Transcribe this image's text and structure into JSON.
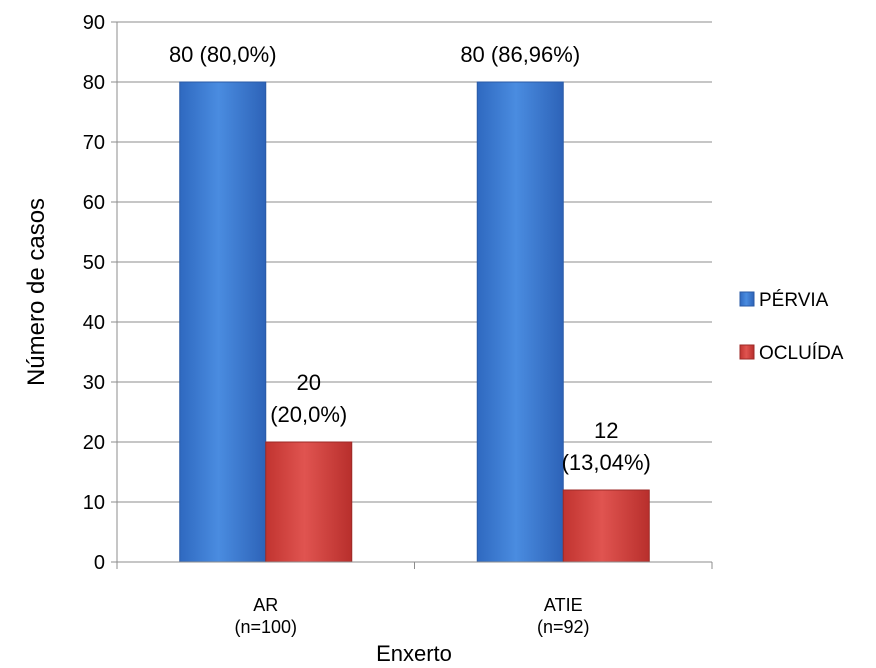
{
  "chart_data": {
    "type": "bar",
    "title": "",
    "xlabel": "Enxerto",
    "ylabel": "Número de casos",
    "ylim": [
      0,
      90
    ],
    "yticks": [
      0,
      10,
      20,
      30,
      40,
      50,
      60,
      70,
      80,
      90
    ],
    "grid": true,
    "legend_position": "right",
    "categories": [
      {
        "name": "AR",
        "n_label": "(n=100)"
      },
      {
        "name": "ATIE",
        "n_label": "(n=92)"
      }
    ],
    "series": [
      {
        "name": "PÉRVIA",
        "color": "#3f7fd5",
        "values": [
          80,
          80
        ],
        "labels": [
          [
            "80 (80,0%)"
          ],
          [
            "80 (86,96%)"
          ]
        ]
      },
      {
        "name": "OCLUÍDA",
        "color": "#d33c38",
        "values": [
          20,
          12
        ],
        "labels": [
          [
            "20",
            "(20,0%)"
          ],
          [
            "12",
            "(13,04%)"
          ]
        ]
      }
    ]
  }
}
